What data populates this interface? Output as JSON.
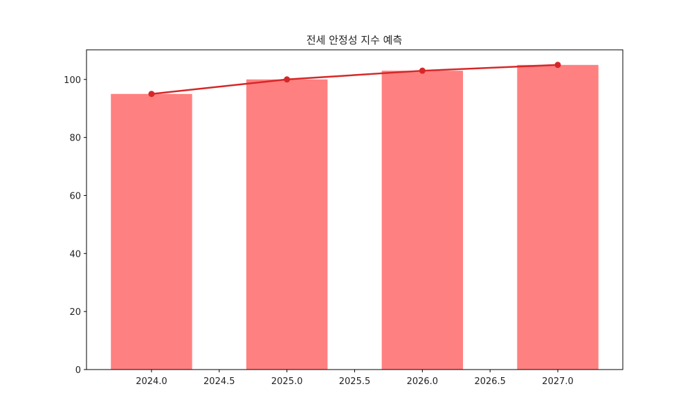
{
  "chart_data": {
    "type": "bar+line",
    "title": "전세 안정성 지수 예측",
    "xlabel": "",
    "ylabel": "",
    "x": [
      2024,
      2025,
      2026,
      2027
    ],
    "series": [
      {
        "name": "bar",
        "type": "bar",
        "values": [
          95,
          100,
          103,
          105
        ],
        "color": "#ff8080"
      },
      {
        "name": "line",
        "type": "line",
        "values": [
          95,
          100,
          103,
          105
        ],
        "color": "#d62728",
        "marker": "o"
      }
    ],
    "xlim": [
      2023.52,
      2027.48
    ],
    "ylim": [
      0,
      110.2
    ],
    "xticks": [
      "2024.0",
      "2024.5",
      "2025.0",
      "2025.5",
      "2026.0",
      "2026.5",
      "2027.0"
    ],
    "yticks": [
      "0",
      "20",
      "40",
      "60",
      "80",
      "100"
    ],
    "grid": false,
    "legend": null
  }
}
